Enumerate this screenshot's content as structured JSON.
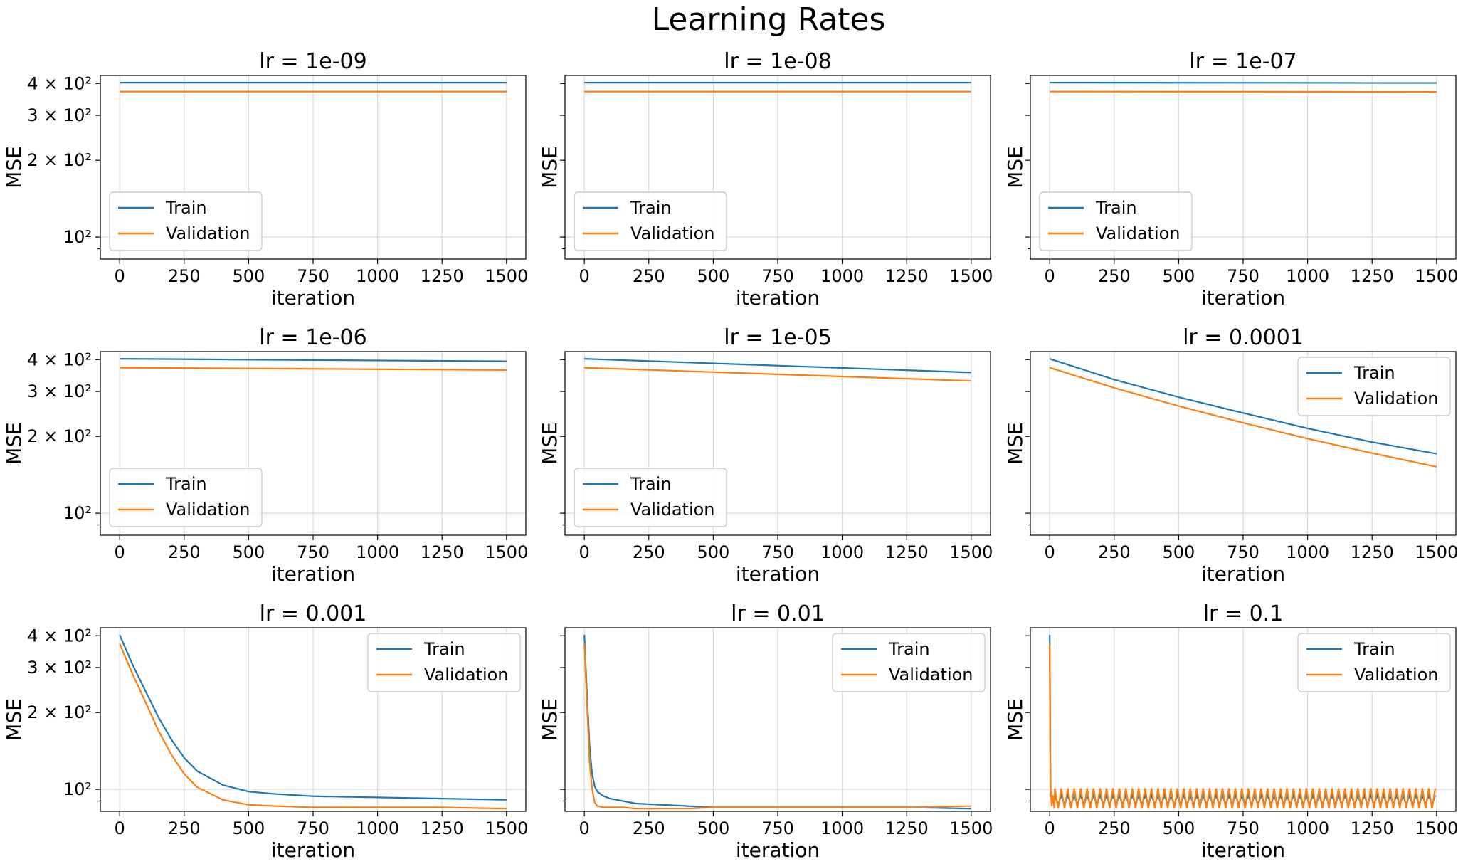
{
  "figure": {
    "title": "Learning Rates"
  },
  "colors": {
    "train": "#1f77b4",
    "validation": "#ff7f0e"
  },
  "chart_data": [
    {
      "type": "line",
      "title": "lr = 1e-09",
      "xlabel": "iteration",
      "ylabel": "MSE",
      "xlim": [
        -75,
        1575
      ],
      "ylim": [
        82,
        430
      ],
      "yscale": "log",
      "grid": true,
      "legend": "lower-left",
      "xticks": [
        0,
        250,
        500,
        750,
        1000,
        1250,
        1500
      ],
      "ytick_labels": [
        "4 × 10²",
        "3 × 10²",
        "2 × 10²",
        "10²"
      ],
      "x": [
        0,
        1500
      ],
      "series": [
        {
          "name": "Train",
          "values": [
            403,
            403
          ]
        },
        {
          "name": "Validation",
          "values": [
            372,
            372
          ]
        }
      ]
    },
    {
      "type": "line",
      "title": "lr = 1e-08",
      "xlabel": "iteration",
      "ylabel": "MSE",
      "xlim": [
        -75,
        1575
      ],
      "ylim": [
        82,
        430
      ],
      "yscale": "log",
      "grid": true,
      "legend": "lower-left",
      "xticks": [
        0,
        250,
        500,
        750,
        1000,
        1250,
        1500
      ],
      "x": [
        0,
        1500
      ],
      "series": [
        {
          "name": "Train",
          "values": [
            403,
            403
          ]
        },
        {
          "name": "Validation",
          "values": [
            372,
            372
          ]
        }
      ]
    },
    {
      "type": "line",
      "title": "lr = 1e-07",
      "xlabel": "iteration",
      "ylabel": "MSE",
      "xlim": [
        -75,
        1575
      ],
      "ylim": [
        82,
        430
      ],
      "yscale": "log",
      "grid": true,
      "legend": "lower-left",
      "xticks": [
        0,
        250,
        500,
        750,
        1000,
        1250,
        1500
      ],
      "x": [
        0,
        1500
      ],
      "series": [
        {
          "name": "Train",
          "values": [
            403,
            402
          ]
        },
        {
          "name": "Validation",
          "values": [
            372,
            371
          ]
        }
      ]
    },
    {
      "type": "line",
      "title": "lr = 1e-06",
      "xlabel": "iteration",
      "ylabel": "MSE",
      "xlim": [
        -75,
        1575
      ],
      "ylim": [
        82,
        430
      ],
      "yscale": "log",
      "grid": true,
      "legend": "lower-left",
      "ytick_labels": [
        "4 × 10²",
        "3 × 10²",
        "2 × 10²",
        "10²"
      ],
      "xticks": [
        0,
        250,
        500,
        750,
        1000,
        1250,
        1500
      ],
      "x": [
        0,
        1500
      ],
      "series": [
        {
          "name": "Train",
          "values": [
            403,
            394
          ]
        },
        {
          "name": "Validation",
          "values": [
            372,
            364
          ]
        }
      ]
    },
    {
      "type": "line",
      "title": "lr = 1e-05",
      "xlabel": "iteration",
      "ylabel": "MSE",
      "xlim": [
        -75,
        1575
      ],
      "ylim": [
        82,
        430
      ],
      "yscale": "log",
      "grid": true,
      "legend": "lower-left",
      "xticks": [
        0,
        250,
        500,
        750,
        1000,
        1250,
        1500
      ],
      "x": [
        0,
        1500
      ],
      "series": [
        {
          "name": "Train",
          "values": [
            403,
            356
          ]
        },
        {
          "name": "Validation",
          "values": [
            372,
            330
          ]
        }
      ]
    },
    {
      "type": "line",
      "title": "lr = 0.0001",
      "xlabel": "iteration",
      "ylabel": "MSE",
      "xlim": [
        -75,
        1575
      ],
      "ylim": [
        82,
        430
      ],
      "yscale": "log",
      "grid": true,
      "legend": "upper-right",
      "xticks": [
        0,
        250,
        500,
        750,
        1000,
        1250,
        1500
      ],
      "x": [
        0,
        250,
        500,
        750,
        1000,
        1250,
        1500
      ],
      "series": [
        {
          "name": "Train",
          "values": [
            403,
            334,
            285,
            247,
            215,
            190,
            171
          ]
        },
        {
          "name": "Validation",
          "values": [
            372,
            310,
            263,
            226,
            196,
            172,
            152
          ]
        }
      ]
    },
    {
      "type": "line",
      "title": "lr = 0.001",
      "xlabel": "iteration",
      "ylabel": "MSE",
      "xlim": [
        -75,
        1575
      ],
      "ylim": [
        82,
        430
      ],
      "yscale": "log",
      "grid": true,
      "legend": "upper-right",
      "ytick_labels": [
        "4 × 10²",
        "3 × 10²",
        "2 × 10²",
        "10²"
      ],
      "xticks": [
        0,
        250,
        500,
        750,
        1000,
        1250,
        1500
      ],
      "x": [
        0,
        50,
        100,
        150,
        200,
        250,
        300,
        400,
        500,
        600,
        750,
        1000,
        1250,
        1500
      ],
      "series": [
        {
          "name": "Train",
          "values": [
            403,
            308,
            243,
            192,
            157,
            133,
            118,
            104,
            98,
            96,
            94,
            93,
            92,
            91
          ]
        },
        {
          "name": "Validation",
          "values": [
            372,
            283,
            220,
            170,
            137,
            115,
            102,
            91,
            87,
            86,
            85,
            85,
            85,
            84
          ]
        }
      ]
    },
    {
      "type": "line",
      "title": "lr = 0.01",
      "xlabel": "iteration",
      "ylabel": "MSE",
      "xlim": [
        -75,
        1575
      ],
      "ylim": [
        82,
        430
      ],
      "yscale": "log",
      "grid": true,
      "legend": "upper-right",
      "xticks": [
        0,
        250,
        500,
        750,
        1000,
        1250,
        1500
      ],
      "x": [
        0,
        10,
        20,
        30,
        40,
        50,
        75,
        100,
        150,
        200,
        300,
        400,
        500,
        750,
        1000,
        1250,
        1500
      ],
      "series": [
        {
          "name": "Train",
          "values": [
            403,
            240,
            150,
            115,
            103,
            98,
            94,
            92,
            90,
            88,
            87,
            86,
            85,
            85,
            85,
            85,
            84
          ]
        },
        {
          "name": "Validation",
          "values": [
            372,
            220,
            130,
            100,
            89,
            86,
            85,
            85,
            85,
            84,
            84,
            84,
            85,
            85,
            85,
            85,
            86
          ]
        }
      ]
    },
    {
      "type": "line",
      "title": "lr = 0.1",
      "xlabel": "iteration",
      "ylabel": "MSE",
      "xlim": [
        -75,
        1575
      ],
      "ylim": [
        82,
        430
      ],
      "yscale": "log",
      "grid": true,
      "legend": "upper-right",
      "xticks": [
        0,
        250,
        500,
        750,
        1000,
        1250,
        1500
      ],
      "x": [
        0,
        2,
        4,
        8,
        12,
        18,
        1500
      ],
      "series": [
        {
          "name": "Train",
          "values": [
            403,
            150,
            96,
            90,
            92,
            88,
            90
          ],
          "oscillation": {
            "period": 25,
            "low": 87,
            "high": 95
          }
        },
        {
          "name": "Validation",
          "values": [
            372,
            140,
            98,
            86,
            95,
            84,
            92
          ],
          "oscillation": {
            "period": 25,
            "low": 84,
            "high": 101
          }
        }
      ]
    }
  ]
}
